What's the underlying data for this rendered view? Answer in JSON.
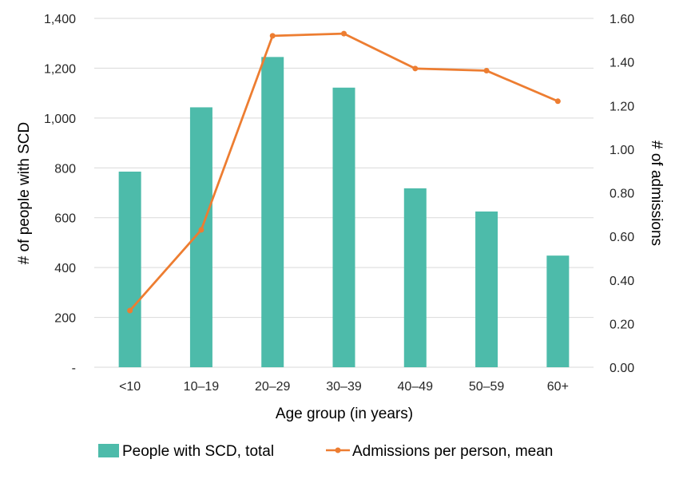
{
  "chart_data": {
    "type": "bar+line",
    "categories": [
      "<10",
      "10–19",
      "20–29",
      "30–39",
      "40–49",
      "50–59",
      "60+"
    ],
    "series": [
      {
        "name": "People with SCD, total",
        "type": "bar",
        "axis": "left",
        "color": "#4DBBAA",
        "values": [
          785,
          1043,
          1245,
          1122,
          718,
          625,
          448
        ]
      },
      {
        "name": "Admissions per person, mean",
        "type": "line",
        "axis": "right",
        "color": "#ED7D31",
        "values": [
          0.26,
          0.63,
          1.52,
          1.53,
          1.37,
          1.36,
          1.22
        ]
      }
    ],
    "xlabel": "Age group (in years)",
    "ylabel": "# of people with SCD",
    "y2label": "# of admissions",
    "ylim": [
      0,
      1400
    ],
    "y2lim": [
      0,
      1.6
    ],
    "yticks": [
      "-",
      "200",
      "400",
      "600",
      "800",
      "1,000",
      "1,200",
      "1,400"
    ],
    "y2ticks": [
      "0.00",
      "0.20",
      "0.40",
      "0.60",
      "0.80",
      "1.00",
      "1.20",
      "1.40",
      "1.60"
    ],
    "grid": true,
    "legend_position": "bottom"
  }
}
